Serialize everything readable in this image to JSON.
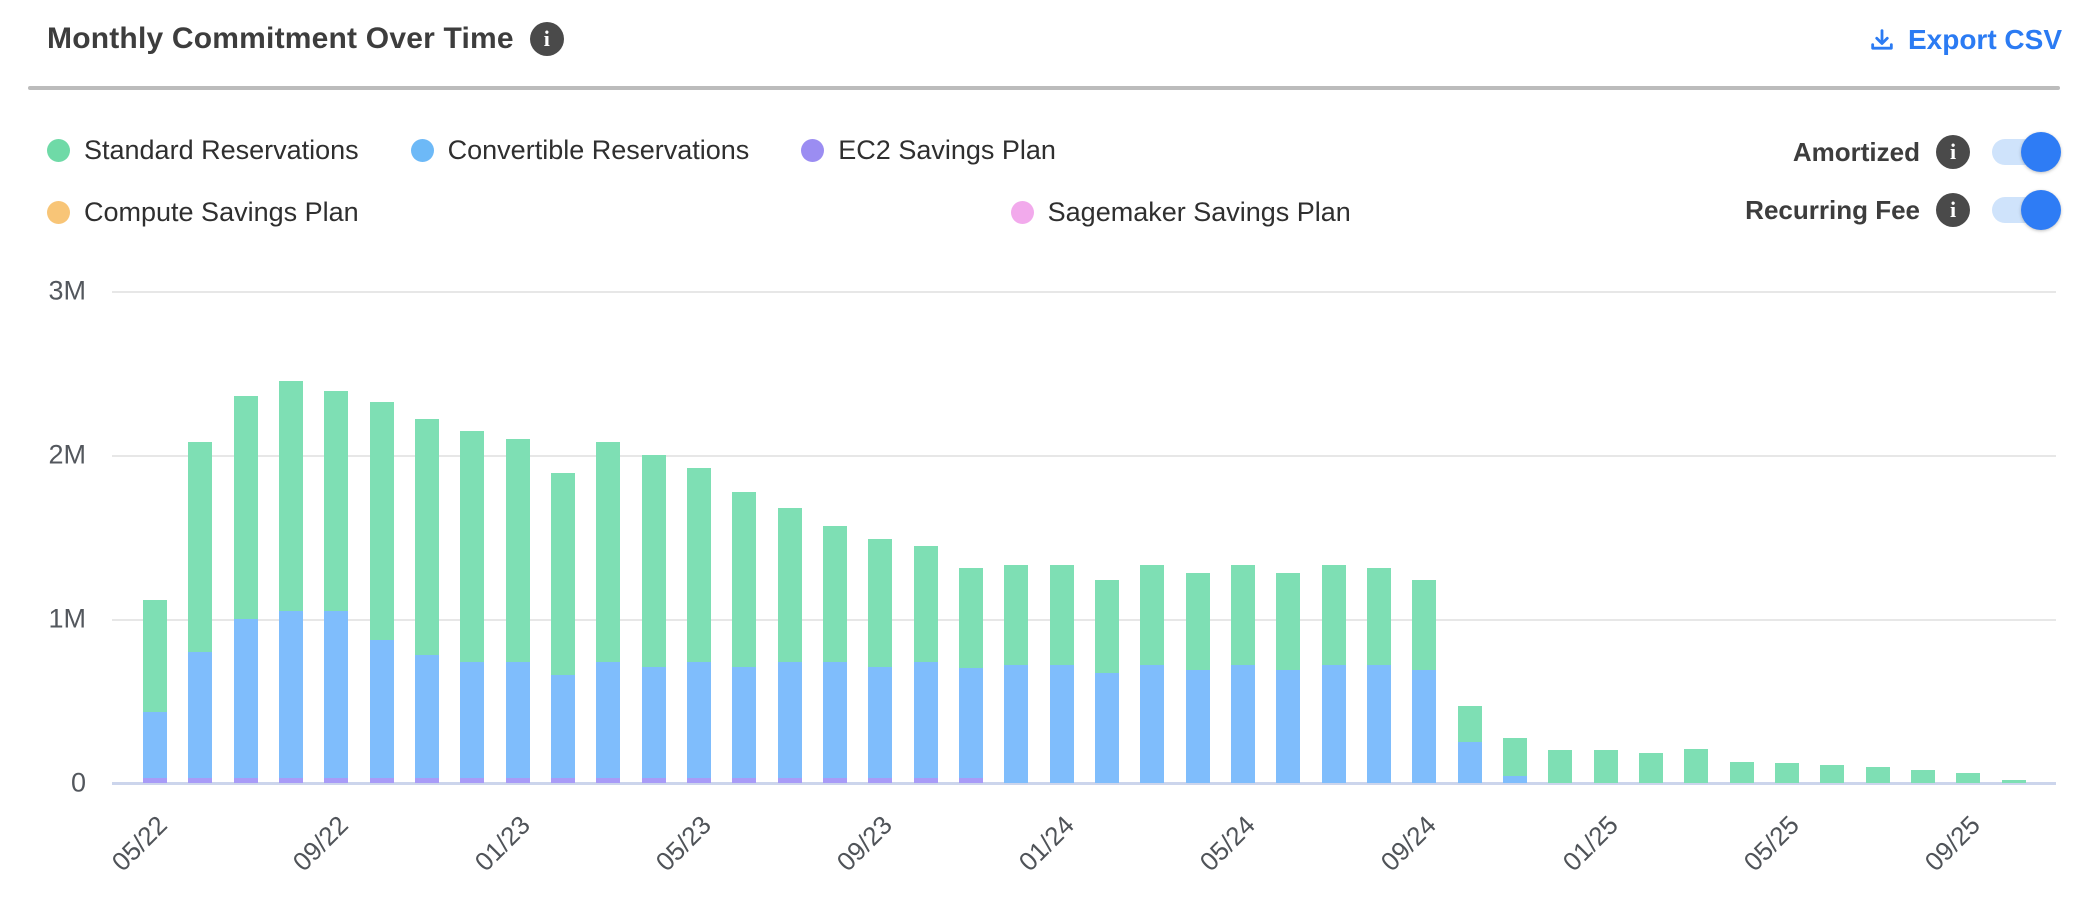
{
  "header": {
    "title": "Monthly Commitment Over Time",
    "title_info_icon": "i",
    "export_label": "Export CSV"
  },
  "legend": {
    "items": [
      {
        "label": "Standard Reservations",
        "color": "#6fdaa7"
      },
      {
        "label": "Convertible Reservations",
        "color": "#6db9f7"
      },
      {
        "label": "EC2 Savings Plan",
        "color": "#9b8df2"
      },
      {
        "label": "Compute Savings Plan",
        "color": "#f8c577"
      },
      {
        "label": "Sagemaker Savings Plan",
        "color": "#f2aaec"
      }
    ]
  },
  "toggles": [
    {
      "label": "Amortized",
      "info_icon": "i",
      "state": "on"
    },
    {
      "label": "Recurring Fee",
      "info_icon": "i",
      "state": "on"
    }
  ],
  "colors": {
    "accent_blue": "#2b7bf3",
    "toggle_track": "#cfe3fb",
    "toggle_knob": "#2e7cf5",
    "gridline": "#e7e7e7",
    "axis_line": "#ccd5ec"
  },
  "chart_data": {
    "type": "bar",
    "stacked": true,
    "unit": "M (millions USD)",
    "ylim": [
      0,
      3
    ],
    "grid": true,
    "y_ticks": [
      "0",
      "1M",
      "2M",
      "3M"
    ],
    "x": [
      "05/22",
      "06/22",
      "07/22",
      "08/22",
      "09/22",
      "10/22",
      "11/22",
      "12/22",
      "01/23",
      "02/23",
      "03/23",
      "04/23",
      "05/23",
      "06/23",
      "07/23",
      "08/23",
      "09/23",
      "10/23",
      "11/23",
      "12/23",
      "01/24",
      "02/24",
      "03/24",
      "04/24",
      "05/24",
      "06/24",
      "07/24",
      "08/24",
      "09/24",
      "10/24",
      "11/24",
      "12/24",
      "01/25",
      "02/25",
      "03/25",
      "04/25",
      "05/25",
      "06/25",
      "07/25",
      "08/25",
      "09/25",
      "10/25"
    ],
    "x_tick_labels": [
      "05/22",
      "09/22",
      "01/23",
      "05/23",
      "09/23",
      "01/24",
      "05/24",
      "09/24",
      "01/25",
      "05/25",
      "09/25"
    ],
    "x_tick_indices": [
      0,
      4,
      8,
      12,
      16,
      20,
      24,
      28,
      32,
      36,
      40
    ],
    "stack_order_bottom_to_top": [
      "EC2 Savings Plan",
      "Convertible Reservations",
      "Standard Reservations",
      "Compute Savings Plan",
      "Sagemaker Savings Plan"
    ],
    "series": [
      {
        "name": "EC2 Savings Plan",
        "color": "#a89bf7",
        "values": [
          0.03,
          0.03,
          0.03,
          0.03,
          0.03,
          0.03,
          0.03,
          0.03,
          0.03,
          0.03,
          0.03,
          0.03,
          0.03,
          0.03,
          0.03,
          0.03,
          0.03,
          0.03,
          0.03,
          0,
          0,
          0,
          0,
          0,
          0,
          0,
          0,
          0,
          0,
          0,
          0,
          0,
          0,
          0,
          0,
          0,
          0,
          0,
          0,
          0,
          0,
          0
        ]
      },
      {
        "name": "Convertible Reservations",
        "color": "#7fbdfc",
        "values": [
          0.4,
          0.77,
          0.97,
          1.02,
          1.02,
          0.84,
          0.75,
          0.71,
          0.71,
          0.63,
          0.71,
          0.68,
          0.71,
          0.68,
          0.71,
          0.71,
          0.68,
          0.71,
          0.67,
          0.72,
          0.72,
          0.67,
          0.72,
          0.69,
          0.72,
          0.69,
          0.72,
          0.72,
          0.69,
          0.25,
          0.04,
          0,
          0,
          0,
          0,
          0,
          0,
          0,
          0,
          0,
          0,
          0
        ]
      },
      {
        "name": "Standard Reservations",
        "color": "#7edfb4",
        "values": [
          0.68,
          1.28,
          1.36,
          1.4,
          1.34,
          1.45,
          1.44,
          1.41,
          1.36,
          1.23,
          1.34,
          1.29,
          1.18,
          1.07,
          0.94,
          0.83,
          0.78,
          0.71,
          0.61,
          0.61,
          0.61,
          0.57,
          0.61,
          0.59,
          0.61,
          0.59,
          0.61,
          0.59,
          0.55,
          0.22,
          0.23,
          0.2,
          0.2,
          0.18,
          0.21,
          0.13,
          0.12,
          0.11,
          0.1,
          0.08,
          0.06,
          0.02
        ]
      },
      {
        "name": "Compute Savings Plan",
        "color": "#f8c577",
        "values": [
          0,
          0,
          0,
          0,
          0,
          0,
          0,
          0,
          0,
          0,
          0,
          0,
          0,
          0,
          0,
          0,
          0,
          0,
          0,
          0,
          0,
          0,
          0,
          0,
          0,
          0,
          0,
          0,
          0,
          0,
          0,
          0,
          0,
          0,
          0,
          0,
          0,
          0,
          0,
          0,
          0,
          0
        ]
      },
      {
        "name": "Sagemaker Savings Plan",
        "color": "#f2aaec",
        "values": [
          0,
          0,
          0,
          0,
          0,
          0,
          0,
          0,
          0,
          0,
          0,
          0,
          0,
          0,
          0,
          0,
          0,
          0,
          0,
          0,
          0,
          0,
          0,
          0,
          0,
          0,
          0,
          0,
          0,
          0,
          0,
          0,
          0,
          0,
          0,
          0,
          0,
          0,
          0,
          0,
          0,
          0
        ]
      }
    ]
  }
}
